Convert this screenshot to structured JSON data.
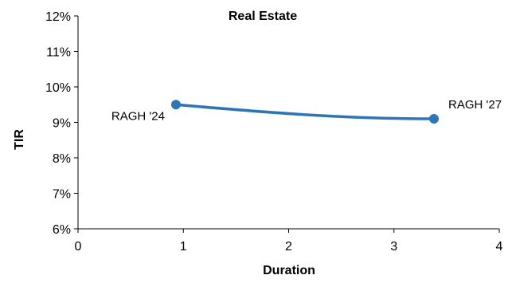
{
  "chart_data": {
    "type": "line",
    "title": "Real Estate",
    "xlabel": "Duration",
    "ylabel": "TIR",
    "xlim": [
      0,
      4
    ],
    "ylim": [
      6,
      12
    ],
    "x_ticks": [
      0,
      1,
      2,
      3,
      4
    ],
    "y_ticks": [
      6,
      7,
      8,
      9,
      10,
      11,
      12
    ],
    "x_tick_labels": [
      "0",
      "1",
      "2",
      "3",
      "4"
    ],
    "y_tick_labels": [
      "6%",
      "7%",
      "8%",
      "9%",
      "10%",
      "11%",
      "12%"
    ],
    "grid": false,
    "legend": "none",
    "series": [
      {
        "color": "#2E75B6",
        "points": [
          {
            "label": "RAGH '24",
            "x": 0.93,
            "y": 9.5
          },
          {
            "label": "RAGH '27",
            "x": 3.38,
            "y": 9.1
          }
        ]
      }
    ]
  }
}
